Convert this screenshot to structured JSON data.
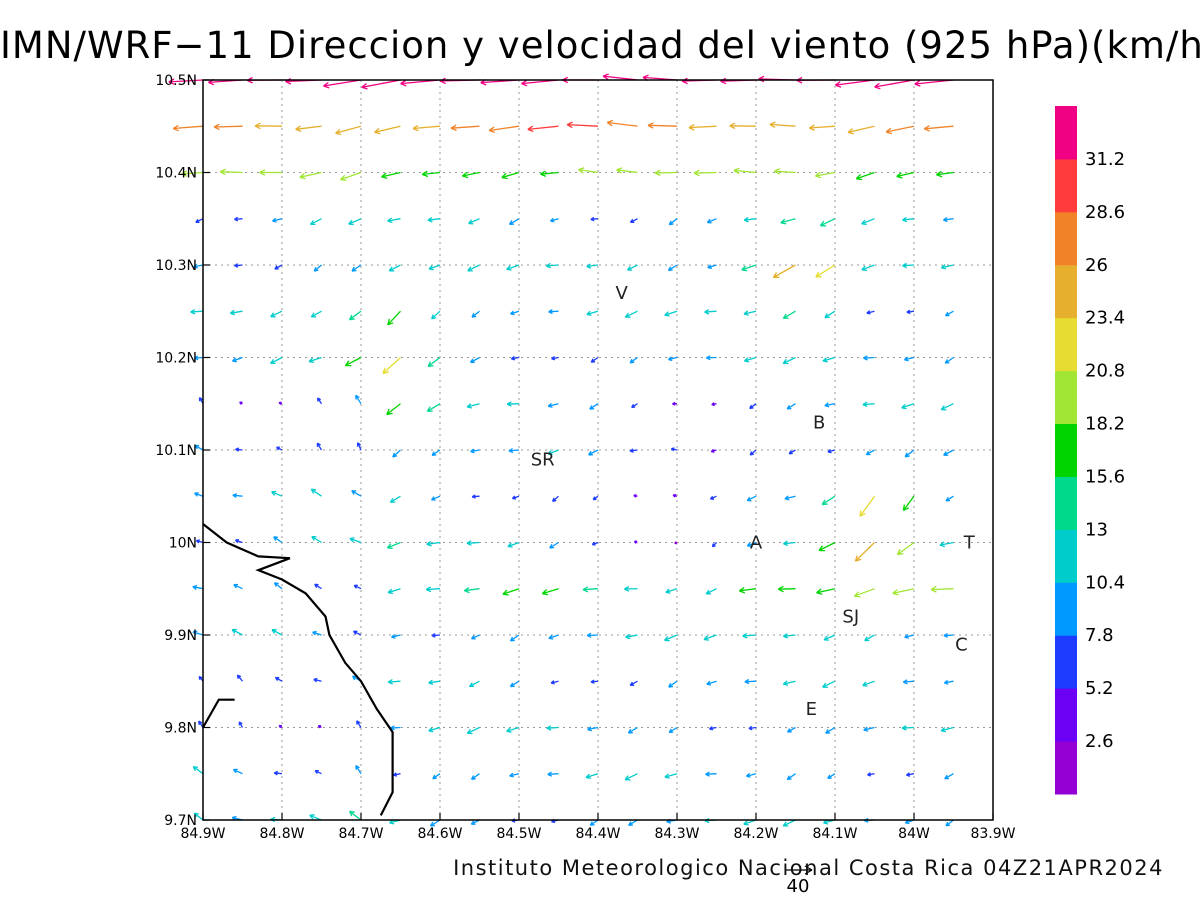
{
  "title": "IMN/WRF−11 Direccion y velocidad del viento (925 hPa)(km/h)",
  "footer": "Instituto Meteorologico Nacional Costa Rica 04Z21APR2024",
  "reference_vector": {
    "label": "40",
    "value": 40
  },
  "map": {
    "lon_range": [
      -84.9,
      -83.9
    ],
    "lat_range": [
      9.7,
      10.5
    ],
    "x_ticks": [
      {
        "value": -84.9,
        "label": "84.9W"
      },
      {
        "value": -84.8,
        "label": "84.8W"
      },
      {
        "value": -84.7,
        "label": "84.7W"
      },
      {
        "value": -84.6,
        "label": "84.6W"
      },
      {
        "value": -84.5,
        "label": "84.5W"
      },
      {
        "value": -84.4,
        "label": "84.4W"
      },
      {
        "value": -84.3,
        "label": "84.3W"
      },
      {
        "value": -84.2,
        "label": "84.2W"
      },
      {
        "value": -84.1,
        "label": "84.1W"
      },
      {
        "value": -84.0,
        "label": "84W"
      },
      {
        "value": -83.9,
        "label": "83.9W"
      }
    ],
    "y_ticks": [
      {
        "value": 10.5,
        "label": "10.5N"
      },
      {
        "value": 10.4,
        "label": "10.4N"
      },
      {
        "value": 10.3,
        "label": "10.3N"
      },
      {
        "value": 10.2,
        "label": "10.2N"
      },
      {
        "value": 10.1,
        "label": "10.1N"
      },
      {
        "value": 10.0,
        "label": "10N"
      },
      {
        "value": 9.9,
        "label": "9.9N"
      },
      {
        "value": 9.8,
        "label": "9.8N"
      },
      {
        "value": 9.7,
        "label": "9.7N"
      }
    ],
    "grid": "dotted",
    "places": [
      {
        "label": "V",
        "lon": -84.37,
        "lat": 10.27
      },
      {
        "label": "SR",
        "lon": -84.47,
        "lat": 10.09
      },
      {
        "label": "B",
        "lon": -84.12,
        "lat": 10.13
      },
      {
        "label": "A",
        "lon": -84.2,
        "lat": 10.0
      },
      {
        "label": "T",
        "lon": -83.93,
        "lat": 10.0
      },
      {
        "label": "SJ",
        "lon": -84.08,
        "lat": 9.92
      },
      {
        "label": "C",
        "lon": -83.94,
        "lat": 9.89
      },
      {
        "label": "E",
        "lon": -84.13,
        "lat": 9.82
      }
    ],
    "coastline": [
      [
        -84.9,
        10.02
      ],
      [
        -84.87,
        10.0
      ],
      [
        -84.83,
        9.985
      ],
      [
        -84.79,
        9.983
      ],
      [
        -84.83,
        9.97
      ],
      [
        -84.8,
        9.96
      ],
      [
        -84.77,
        9.945
      ],
      [
        -84.745,
        9.92
      ],
      [
        -84.74,
        9.9
      ],
      [
        -84.72,
        9.87
      ],
      [
        -84.7,
        9.85
      ],
      [
        -84.68,
        9.82
      ],
      [
        -84.66,
        9.795
      ],
      [
        -84.66,
        9.73
      ],
      [
        -84.675,
        9.705
      ]
    ],
    "coastline2": [
      [
        -84.9,
        9.8
      ],
      [
        -84.88,
        9.83
      ],
      [
        -84.86,
        9.83
      ]
    ]
  },
  "colorbar": {
    "levels": [
      "2.6",
      "5.2",
      "7.8",
      "10.4",
      "13",
      "15.6",
      "18.2",
      "20.8",
      "23.4",
      "26",
      "28.6",
      "31.2"
    ],
    "colors": [
      "#9400d3",
      "#6b00f5",
      "#1e3cff",
      "#0099ff",
      "#00cccc",
      "#00d98c",
      "#00d400",
      "#a0e632",
      "#e6dc32",
      "#e6af2d",
      "#f08228",
      "#ff3c3c",
      "#f00082"
    ]
  }
}
